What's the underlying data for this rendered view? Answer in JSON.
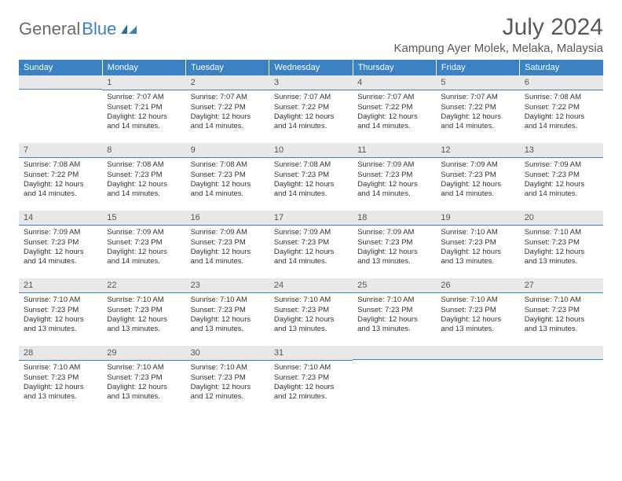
{
  "logo": {
    "general": "General",
    "blue": "Blue"
  },
  "header": {
    "month_title": "July 2024",
    "location": "Kampung Ayer Molek, Melaka, Malaysia"
  },
  "calendar": {
    "day_headers": [
      "Sunday",
      "Monday",
      "Tuesday",
      "Wednesday",
      "Thursday",
      "Friday",
      "Saturday"
    ],
    "header_bg": "#3b82c4",
    "header_fg": "#ffffff",
    "daynum_bg": "#e8e8e8",
    "divider_color": "#3b82c4",
    "weeks": [
      [
        {
          "num": "",
          "lines": []
        },
        {
          "num": "1",
          "lines": [
            "Sunrise: 7:07 AM",
            "Sunset: 7:21 PM",
            "Daylight: 12 hours",
            "and 14 minutes."
          ]
        },
        {
          "num": "2",
          "lines": [
            "Sunrise: 7:07 AM",
            "Sunset: 7:22 PM",
            "Daylight: 12 hours",
            "and 14 minutes."
          ]
        },
        {
          "num": "3",
          "lines": [
            "Sunrise: 7:07 AM",
            "Sunset: 7:22 PM",
            "Daylight: 12 hours",
            "and 14 minutes."
          ]
        },
        {
          "num": "4",
          "lines": [
            "Sunrise: 7:07 AM",
            "Sunset: 7:22 PM",
            "Daylight: 12 hours",
            "and 14 minutes."
          ]
        },
        {
          "num": "5",
          "lines": [
            "Sunrise: 7:07 AM",
            "Sunset: 7:22 PM",
            "Daylight: 12 hours",
            "and 14 minutes."
          ]
        },
        {
          "num": "6",
          "lines": [
            "Sunrise: 7:08 AM",
            "Sunset: 7:22 PM",
            "Daylight: 12 hours",
            "and 14 minutes."
          ]
        }
      ],
      [
        {
          "num": "7",
          "lines": [
            "Sunrise: 7:08 AM",
            "Sunset: 7:22 PM",
            "Daylight: 12 hours",
            "and 14 minutes."
          ]
        },
        {
          "num": "8",
          "lines": [
            "Sunrise: 7:08 AM",
            "Sunset: 7:23 PM",
            "Daylight: 12 hours",
            "and 14 minutes."
          ]
        },
        {
          "num": "9",
          "lines": [
            "Sunrise: 7:08 AM",
            "Sunset: 7:23 PM",
            "Daylight: 12 hours",
            "and 14 minutes."
          ]
        },
        {
          "num": "10",
          "lines": [
            "Sunrise: 7:08 AM",
            "Sunset: 7:23 PM",
            "Daylight: 12 hours",
            "and 14 minutes."
          ]
        },
        {
          "num": "11",
          "lines": [
            "Sunrise: 7:09 AM",
            "Sunset: 7:23 PM",
            "Daylight: 12 hours",
            "and 14 minutes."
          ]
        },
        {
          "num": "12",
          "lines": [
            "Sunrise: 7:09 AM",
            "Sunset: 7:23 PM",
            "Daylight: 12 hours",
            "and 14 minutes."
          ]
        },
        {
          "num": "13",
          "lines": [
            "Sunrise: 7:09 AM",
            "Sunset: 7:23 PM",
            "Daylight: 12 hours",
            "and 14 minutes."
          ]
        }
      ],
      [
        {
          "num": "14",
          "lines": [
            "Sunrise: 7:09 AM",
            "Sunset: 7:23 PM",
            "Daylight: 12 hours",
            "and 14 minutes."
          ]
        },
        {
          "num": "15",
          "lines": [
            "Sunrise: 7:09 AM",
            "Sunset: 7:23 PM",
            "Daylight: 12 hours",
            "and 14 minutes."
          ]
        },
        {
          "num": "16",
          "lines": [
            "Sunrise: 7:09 AM",
            "Sunset: 7:23 PM",
            "Daylight: 12 hours",
            "and 14 minutes."
          ]
        },
        {
          "num": "17",
          "lines": [
            "Sunrise: 7:09 AM",
            "Sunset: 7:23 PM",
            "Daylight: 12 hours",
            "and 14 minutes."
          ]
        },
        {
          "num": "18",
          "lines": [
            "Sunrise: 7:09 AM",
            "Sunset: 7:23 PM",
            "Daylight: 12 hours",
            "and 13 minutes."
          ]
        },
        {
          "num": "19",
          "lines": [
            "Sunrise: 7:10 AM",
            "Sunset: 7:23 PM",
            "Daylight: 12 hours",
            "and 13 minutes."
          ]
        },
        {
          "num": "20",
          "lines": [
            "Sunrise: 7:10 AM",
            "Sunset: 7:23 PM",
            "Daylight: 12 hours",
            "and 13 minutes."
          ]
        }
      ],
      [
        {
          "num": "21",
          "lines": [
            "Sunrise: 7:10 AM",
            "Sunset: 7:23 PM",
            "Daylight: 12 hours",
            "and 13 minutes."
          ]
        },
        {
          "num": "22",
          "lines": [
            "Sunrise: 7:10 AM",
            "Sunset: 7:23 PM",
            "Daylight: 12 hours",
            "and 13 minutes."
          ]
        },
        {
          "num": "23",
          "lines": [
            "Sunrise: 7:10 AM",
            "Sunset: 7:23 PM",
            "Daylight: 12 hours",
            "and 13 minutes."
          ]
        },
        {
          "num": "24",
          "lines": [
            "Sunrise: 7:10 AM",
            "Sunset: 7:23 PM",
            "Daylight: 12 hours",
            "and 13 minutes."
          ]
        },
        {
          "num": "25",
          "lines": [
            "Sunrise: 7:10 AM",
            "Sunset: 7:23 PM",
            "Daylight: 12 hours",
            "and 13 minutes."
          ]
        },
        {
          "num": "26",
          "lines": [
            "Sunrise: 7:10 AM",
            "Sunset: 7:23 PM",
            "Daylight: 12 hours",
            "and 13 minutes."
          ]
        },
        {
          "num": "27",
          "lines": [
            "Sunrise: 7:10 AM",
            "Sunset: 7:23 PM",
            "Daylight: 12 hours",
            "and 13 minutes."
          ]
        }
      ],
      [
        {
          "num": "28",
          "lines": [
            "Sunrise: 7:10 AM",
            "Sunset: 7:23 PM",
            "Daylight: 12 hours",
            "and 13 minutes."
          ]
        },
        {
          "num": "29",
          "lines": [
            "Sunrise: 7:10 AM",
            "Sunset: 7:23 PM",
            "Daylight: 12 hours",
            "and 13 minutes."
          ]
        },
        {
          "num": "30",
          "lines": [
            "Sunrise: 7:10 AM",
            "Sunset: 7:23 PM",
            "Daylight: 12 hours",
            "and 12 minutes."
          ]
        },
        {
          "num": "31",
          "lines": [
            "Sunrise: 7:10 AM",
            "Sunset: 7:23 PM",
            "Daylight: 12 hours",
            "and 12 minutes."
          ]
        },
        {
          "num": "",
          "lines": []
        },
        {
          "num": "",
          "lines": []
        },
        {
          "num": "",
          "lines": []
        }
      ]
    ]
  }
}
